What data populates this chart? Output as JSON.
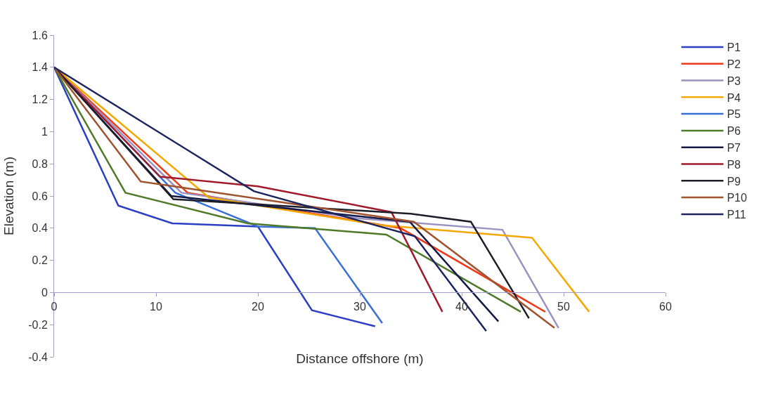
{
  "chart_data": {
    "type": "line",
    "xlabel": "Distance offshore (m)",
    "ylabel": "Elevation (m)",
    "xlim": [
      0,
      60
    ],
    "xticks": [
      0,
      10,
      20,
      30,
      40,
      50,
      60
    ],
    "ylim": [
      -0.4,
      1.6
    ],
    "yticks": [
      -0.4,
      -0.2,
      0,
      0.2,
      0.4,
      0.6,
      0.8,
      {
        "value": 1,
        "label": "1"
      },
      1.2,
      1.4,
      1.6
    ],
    "legend": "right",
    "marker": "none",
    "line_style": "solid",
    "series": [
      {
        "name": "P1",
        "color": "#2a3fc4",
        "x": [
          0,
          6.3,
          11.6,
          20,
          25.3,
          31.5
        ],
        "values": [
          1.4,
          0.54,
          0.43,
          0.41,
          -0.11,
          -0.21
        ]
      },
      {
        "name": "P2",
        "color": "#f03a1a",
        "x": [
          0,
          13.1,
          34,
          48.2
        ],
        "values": [
          1.4,
          0.62,
          0.4,
          -0.12
        ]
      },
      {
        "name": "P3",
        "color": "#9a92c0",
        "x": [
          0,
          12.5,
          30,
          44,
          49.5
        ],
        "values": [
          1.4,
          0.62,
          0.46,
          0.39,
          -0.22
        ]
      },
      {
        "name": "P4",
        "color": "#f5a800",
        "x": [
          0,
          15.2,
          31.9,
          46.9,
          52.5
        ],
        "values": [
          1.4,
          0.59,
          0.42,
          0.34,
          -0.12
        ]
      },
      {
        "name": "P5",
        "color": "#3a6fd8",
        "x": [
          0,
          11.9,
          20,
          25.6,
          32.2
        ],
        "values": [
          1.4,
          0.62,
          0.41,
          0.4,
          -0.19
        ]
      },
      {
        "name": "P6",
        "color": "#4f7a28",
        "x": [
          0,
          7,
          19,
          32.6,
          45.8
        ],
        "values": [
          1.4,
          0.62,
          0.43,
          0.36,
          -0.12
        ]
      },
      {
        "name": "P7",
        "color": "#141a48",
        "x": [
          0,
          11.5,
          34.9,
          43.6
        ],
        "values": [
          1.4,
          0.6,
          0.44,
          -0.18
        ]
      },
      {
        "name": "P8",
        "color": "#a01a2a",
        "x": [
          0,
          10.4,
          20,
          33.1,
          38.1
        ],
        "values": [
          1.4,
          0.72,
          0.66,
          0.5,
          -0.12
        ]
      },
      {
        "name": "P9",
        "color": "#1e1e2a",
        "x": [
          0,
          11.7,
          35,
          40.9,
          46.6
        ],
        "values": [
          1.4,
          0.58,
          0.49,
          0.44,
          -0.16
        ]
      },
      {
        "name": "P10",
        "color": "#a0522d",
        "x": [
          0,
          8.5,
          35.3,
          49.1
        ],
        "values": [
          1.4,
          0.69,
          0.44,
          -0.22
        ]
      },
      {
        "name": "P11",
        "color": "#1c2460",
        "x": [
          0,
          19.6,
          35.4,
          42.4
        ],
        "values": [
          1.4,
          0.63,
          0.35,
          -0.24
        ]
      }
    ]
  }
}
